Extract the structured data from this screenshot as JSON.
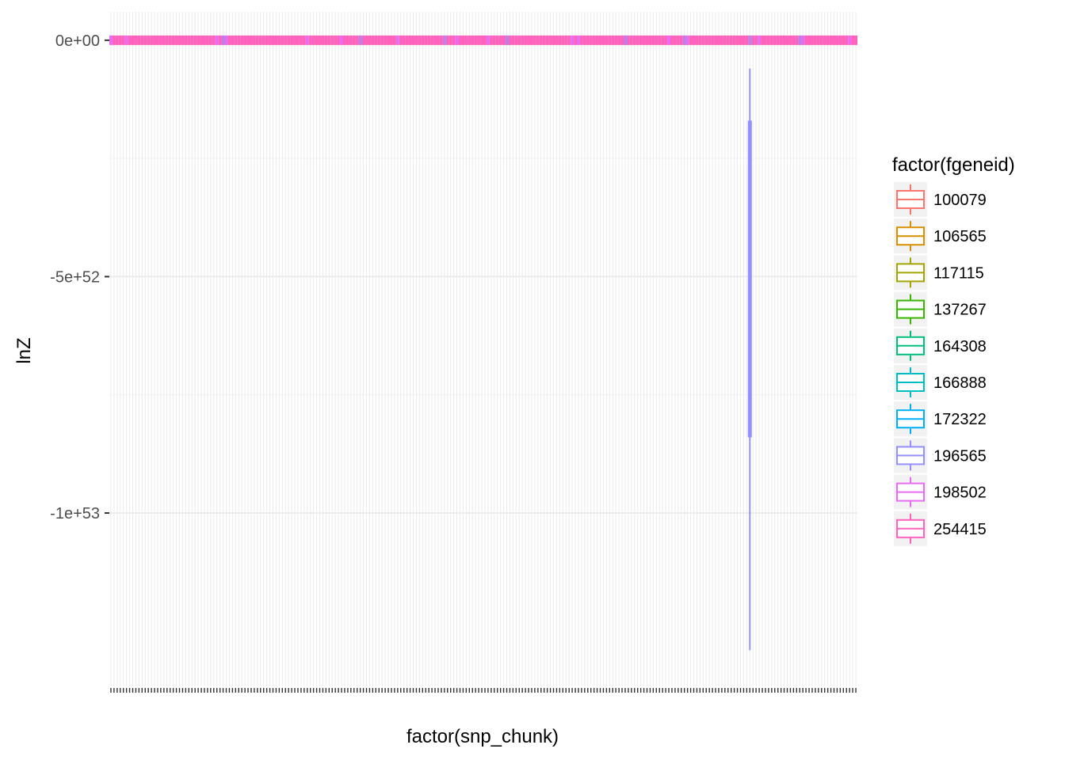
{
  "chart_data": {
    "type": "boxplot",
    "xlabel": "factor(snp_chunk)",
    "ylabel": "lnZ",
    "ylim": [
      -1.365e+53,
      6e+51
    ],
    "y_ticks": [
      {
        "value": 0,
        "label": "0e+00"
      },
      {
        "value": -5e+52,
        "label": "-5e+52"
      },
      {
        "value": -1e+53,
        "label": "-1e+53"
      }
    ],
    "x_category_count": 240,
    "legend": {
      "title": "factor(fgeneid)",
      "position": "right",
      "items": [
        {
          "name": "100079",
          "color": "#F8766D"
        },
        {
          "name": "106565",
          "color": "#D89000"
        },
        {
          "name": "117115",
          "color": "#A3A500"
        },
        {
          "name": "137267",
          "color": "#39B600"
        },
        {
          "name": "164308",
          "color": "#00BF7D"
        },
        {
          "name": "166888",
          "color": "#00BFC4"
        },
        {
          "name": "172322",
          "color": "#00B0F6"
        },
        {
          "name": "196565",
          "color": "#9590FF"
        },
        {
          "name": "198502",
          "color": "#E76BF3"
        },
        {
          "name": "254415",
          "color": "#FF62BC"
        }
      ]
    },
    "series": [
      {
        "name": "254415",
        "color": "#FF62BC",
        "values": "all boxes near 0"
      },
      {
        "name": "196565",
        "color": "#9590FF",
        "outlier_box": {
          "category_index": 205,
          "whisker_low": -1.29e+53,
          "q1": -8.4e+52,
          "median": -5e+52,
          "q3": -1.7e+52,
          "whisker_high": -6e+51
        }
      }
    ],
    "grid": true
  }
}
